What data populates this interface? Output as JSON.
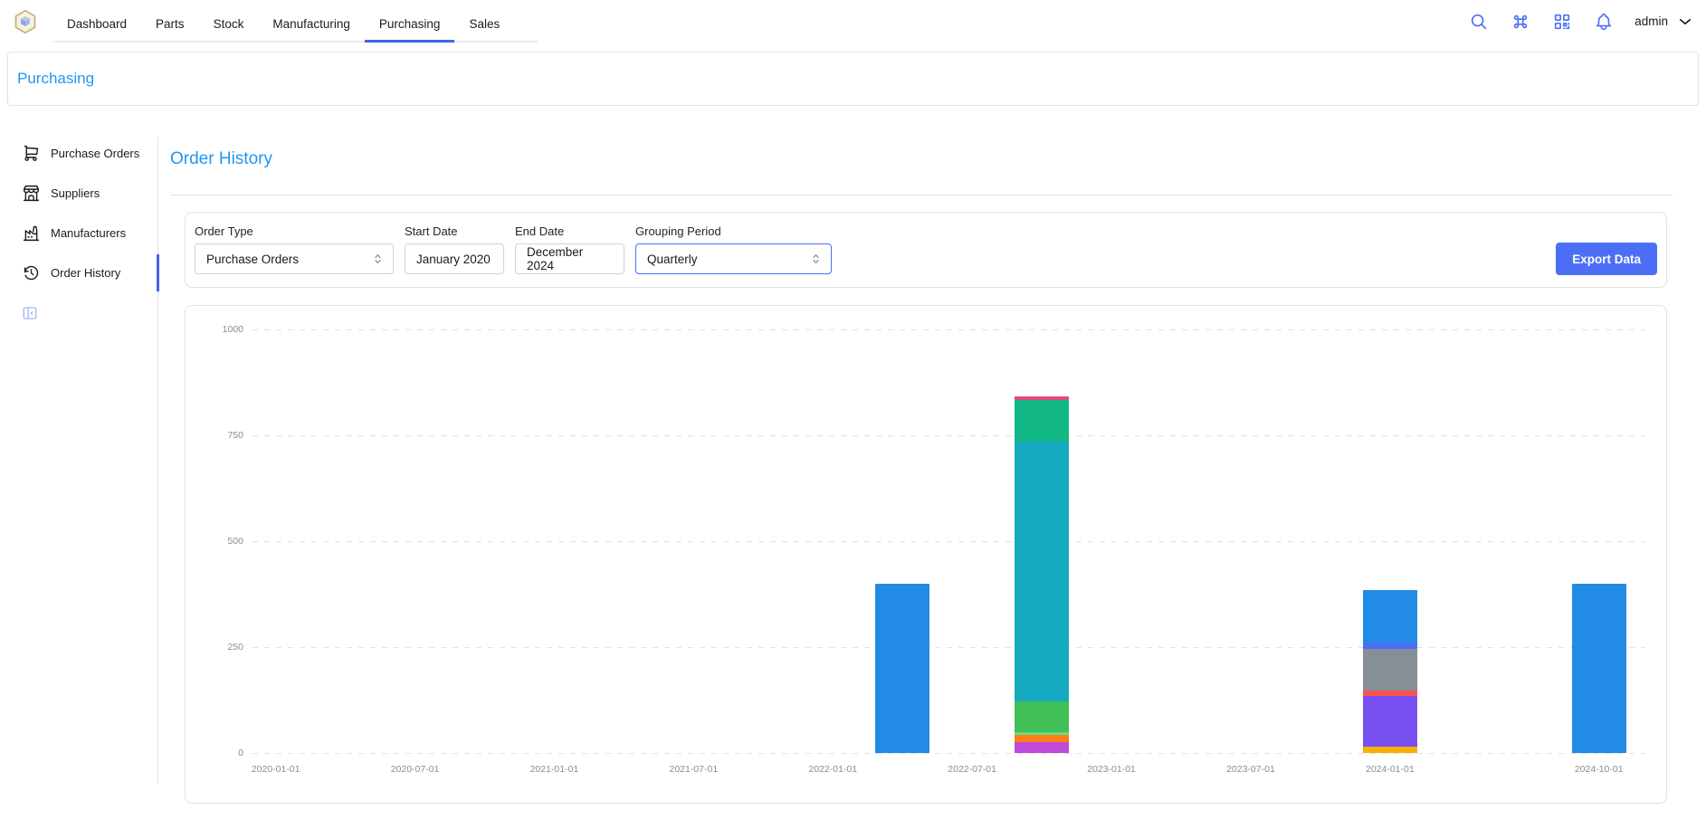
{
  "header": {
    "tabs": [
      {
        "label": "Dashboard"
      },
      {
        "label": "Parts"
      },
      {
        "label": "Stock"
      },
      {
        "label": "Manufacturing"
      },
      {
        "label": "Purchasing"
      },
      {
        "label": "Sales"
      }
    ],
    "active_tab": "Purchasing",
    "icons": [
      "search-icon",
      "command-icon",
      "qr-scan-icon",
      "bell-icon"
    ],
    "user": "admin",
    "accent_color": "#4c6ef5",
    "active_tab_color": "#4263eb"
  },
  "breadcrumb": {
    "title": "Purchasing",
    "color": "#2196f3"
  },
  "sidebar": {
    "items": [
      {
        "label": "Purchase Orders",
        "icon": "shopping-cart-icon"
      },
      {
        "label": "Suppliers",
        "icon": "building-store-icon"
      },
      {
        "label": "Manufacturers",
        "icon": "factory-icon"
      },
      {
        "label": "Order History",
        "icon": "history-icon"
      }
    ],
    "active_item": "Order History",
    "collapse_icon": "sidebar-collapse-icon"
  },
  "main": {
    "title": "Order History",
    "filters": {
      "order_type": {
        "label": "Order Type",
        "value": "Purchase Orders"
      },
      "start_date": {
        "label": "Start Date",
        "value": "January 2020"
      },
      "end_date": {
        "label": "End Date",
        "value": "December 2024"
      },
      "grouping_period": {
        "label": "Grouping Period",
        "value": "Quarterly"
      },
      "export_label": "Export Data"
    }
  },
  "chart_data": {
    "type": "bar",
    "stacked": true,
    "title": "",
    "xlabel": "",
    "ylabel": "",
    "ylim": [
      0,
      1000
    ],
    "yticks": [
      0,
      250,
      500,
      750,
      1000
    ],
    "grid": "dashed-horizontal",
    "legend": "none",
    "xticks": [
      "2020-01-01",
      "2020-07-01",
      "2021-01-01",
      "2021-07-01",
      "2022-01-01",
      "2022-07-01",
      "2023-01-01",
      "2023-07-01",
      "2024-01-01",
      "2024-10-01"
    ],
    "bars": [
      {
        "date": "2022-04-01",
        "total": 400,
        "segments": [
          {
            "color": "#228be6",
            "value": 400
          }
        ]
      },
      {
        "date": "2022-10-01",
        "total": 842,
        "segments": [
          {
            "color": "#be4bdb",
            "value": 26
          },
          {
            "color": "#fd7e14",
            "value": 17
          },
          {
            "color": "#69db7c",
            "value": 6
          },
          {
            "color": "#40c057",
            "value": 73
          },
          {
            "color": "#15aabf",
            "value": 613
          },
          {
            "color": "#12b886",
            "value": 98
          },
          {
            "color": "#e64980",
            "value": 9
          }
        ]
      },
      {
        "date": "2024-01-01",
        "total": 384,
        "segments": [
          {
            "color": "#fab005",
            "value": 15
          },
          {
            "color": "#7950f2",
            "value": 120
          },
          {
            "color": "#fa5252",
            "value": 13
          },
          {
            "color": "#868e96",
            "value": 97
          },
          {
            "color": "#4c6ef5",
            "value": 15
          },
          {
            "color": "#228be6",
            "value": 124
          }
        ]
      },
      {
        "date": "2024-10-01",
        "total": 400,
        "segments": [
          {
            "color": "#228be6",
            "value": 400
          }
        ]
      }
    ]
  }
}
